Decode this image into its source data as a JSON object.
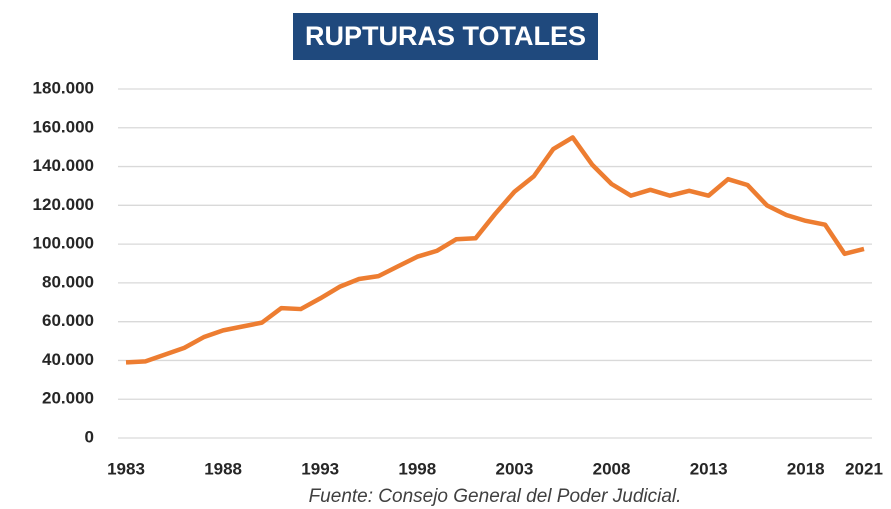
{
  "chart_data": {
    "type": "line",
    "title": "RUPTURAS TOTALES",
    "source": "Fuente: Consejo General del Poder Judicial.",
    "x": [
      1983,
      1984,
      1985,
      1986,
      1987,
      1988,
      1989,
      1990,
      1991,
      1992,
      1993,
      1994,
      1995,
      1996,
      1997,
      1998,
      1999,
      2000,
      2001,
      2002,
      2003,
      2004,
      2005,
      2006,
      2007,
      2008,
      2009,
      2010,
      2011,
      2012,
      2013,
      2014,
      2015,
      2016,
      2017,
      2018,
      2019,
      2020,
      2021
    ],
    "series": [
      {
        "name": "Rupturas totales",
        "color": "#ed7d31",
        "values": [
          39000,
          39500,
          43000,
          46500,
          52000,
          55500,
          57500,
          59500,
          67000,
          66500,
          72000,
          78000,
          82000,
          83500,
          88500,
          93500,
          96500,
          102500,
          103000,
          115500,
          127000,
          135000,
          149000,
          155000,
          141000,
          131000,
          125000,
          128000,
          125000,
          127500,
          125000,
          133500,
          130500,
          120000,
          115000,
          112000,
          110000,
          95000,
          97500
        ]
      }
    ],
    "xlim": [
      1983,
      2021
    ],
    "xticks": [
      1983,
      1988,
      1993,
      1998,
      2003,
      2008,
      2013,
      2018,
      2021
    ],
    "ylim": [
      0,
      180000
    ],
    "yticks": [
      0,
      {
        "value": 20000,
        "label": "20.000"
      },
      {
        "value": 40000,
        "label": "40.000"
      },
      {
        "value": 60000,
        "label": "60.000"
      },
      {
        "value": 80000,
        "label": "80.000"
      },
      {
        "value": 100000,
        "label": "100.000"
      },
      {
        "value": 120000,
        "label": "120.000"
      },
      {
        "value": 140000,
        "label": "140.000"
      },
      {
        "value": 160000,
        "label": "160.000"
      },
      {
        "value": 180000,
        "label": "180.000"
      }
    ],
    "grid": true
  }
}
